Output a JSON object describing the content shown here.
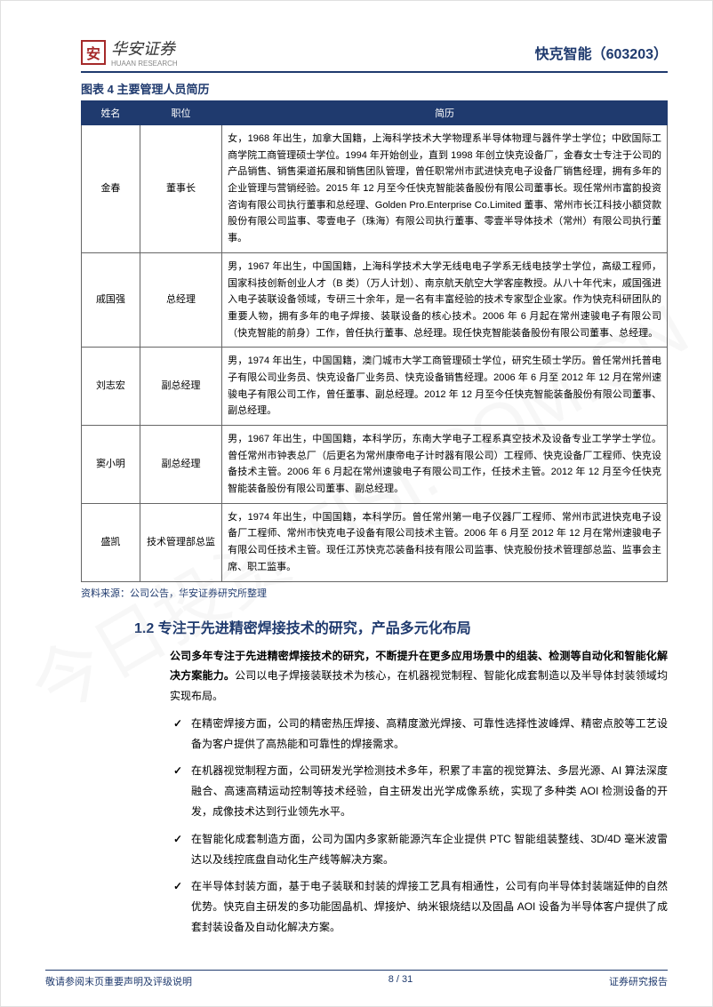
{
  "header": {
    "logo_char": "安",
    "logo_text": "华安证券",
    "logo_sub": "HUAAN RESEARCH",
    "stock": "快克智能（603203）"
  },
  "figure_title": "图表 4 主要管理人员简历",
  "table": {
    "columns": [
      "姓名",
      "职位",
      "简历"
    ],
    "col_widths": [
      "10%",
      "14%",
      "76%"
    ],
    "rows": [
      {
        "name": "金春",
        "title": "董事长",
        "bio": "女，1968 年出生，加拿大国籍，上海科学技术大学物理系半导体物理与器件学士学位；中欧国际工商学院工商管理硕士学位。1994 年开始创业，直到 1998 年创立快克设备厂，金春女士专注于公司的产品销售、销售渠道拓展和销售团队管理，曾任职常州市武进快克电子设备厂销售经理，拥有多年的企业管理与营销经验。2015 年 12 月至今任快克智能装备股份有限公司董事长。现任常州市富韵投资咨询有限公司执行董事和总经理、Golden Pro.Enterprise Co.Limited 董事、常州市长江科技小额贷款股份有限公司监事、零壹电子（珠海）有限公司执行董事、零壹半导体技术（常州）有限公司执行董事。"
      },
      {
        "name": "戚国强",
        "title": "总经理",
        "bio": "男，1967 年出生，中国国籍，上海科学技术大学无线电电子学系无线电技学士学位，高级工程师，国家科技创新创业人才（B 类）（万人计划）、南京航天航空大学客座教授。从八十年代末，戚国强进入电子装联设备领域，专研三十余年，是一名有丰富经验的技术专家型企业家。作为快克科研团队的重要人物，拥有多年的电子焊接、装联设备的核心技术。2006 年 6 月起在常州速骏电子有限公司（快克智能的前身）工作，曾任执行董事、总经理。现任快克智能装备股份有限公司董事、总经理。"
      },
      {
        "name": "刘志宏",
        "title": "副总经理",
        "bio": "男，1974 年出生，中国国籍，澳门城市大学工商管理硕士学位，研究生硕士学历。曾任常州托普电子有限公司业务员、快克设备厂业务员、快克设备销售经理。2006 年 6 月至 2012 年 12 月在常州速骏电子有限公司工作，曾任董事、副总经理。2012 年 12 月至今任快克智能装备股份有限公司董事、副总经理。"
      },
      {
        "name": "窦小明",
        "title": "副总经理",
        "bio": "男，1967 年出生，中国国籍，本科学历，东南大学电子工程系真空技术及设备专业工学学士学位。曾任常州市钟表总厂（后更名为常州康帝电子计时器有限公司）工程师、快克设备厂工程师、快克设备技术主管。2006 年 6 月起在常州速骏电子有限公司工作，任技术主管。2012 年 12 月至今任快克智能装备股份有限公司董事、副总经理。"
      },
      {
        "name": "盛凯",
        "title": "技术管理部总监",
        "bio": "女，1974 年出生，中国国籍，本科学历。曾任常州第一电子仪器厂工程师、常州市武进快克电子设备厂工程师、常州市快克电子设备有限公司技术主管。2006 年 6 月至 2012 年 12 月在常州速骏电子有限公司任技术主管。现任江苏快克芯装备科技有限公司监事、快克股份技术管理部总监、监事会主席、职工监事。"
      }
    ]
  },
  "source": "资料来源：公司公告，华安证券研究所整理",
  "section_title": "1.2 专注于先进精密焊接技术的研究，产品多元化布局",
  "intro": {
    "bold": "公司多年专注于先进精密焊接技术的研究，不断提升在更多应用场景中的组装、检测等自动化和智能化解决方案能力。",
    "rest": "公司以电子焊接装联技术为核心，在机器视觉制程、智能化成套制造以及半导体封装领域均实现布局。"
  },
  "bullets": [
    {
      "bold": "在精密焊接方面，",
      "rest": "公司的精密热压焊接、高精度激光焊接、可靠性选择性波峰焊、精密点胶等工艺设备为客户提供了高热能和可靠性的焊接需求。"
    },
    {
      "bold": "在机器视觉制程方面，",
      "rest": "公司研发光学检测技术多年，积累了丰富的视觉算法、多层光源、AI 算法深度融合、高速高精运动控制等技术经验，自主研发出光学成像系统，实现了多种类 AOI 检测设备的开发，成像技术达到行业领先水平。"
    },
    {
      "bold": "在智能化成套制造方面，",
      "rest": "公司为国内多家新能源汽车企业提供 PTC 智能组装整线、3D/4D 毫米波雷达以及线控底盘自动化生产线等解决方案。"
    },
    {
      "bold": "在半导体封装方面，",
      "rest": "基于电子装联和封装的焊接工艺具有相通性，公司有向半导体封装端延伸的自然优势。快克自主研发的多功能固晶机、焊接炉、纳米银烧结以及固晶 AOI 设备为半导体客户提供了成套封装设备及自动化解决方案。"
    }
  ],
  "footer": {
    "left": "敬请参阅末页重要声明及评级说明",
    "page": "8 / 31",
    "right": "证券研究报告"
  },
  "style": {
    "brand_color": "#1f3a6e",
    "logo_color": "#a52a2a",
    "header_bg": "#1f3a6e",
    "header_fg": "#ffffff",
    "border_color": "#666666",
    "body_fontsize": 12,
    "table_fontsize": 11,
    "line_height": 1.9
  }
}
